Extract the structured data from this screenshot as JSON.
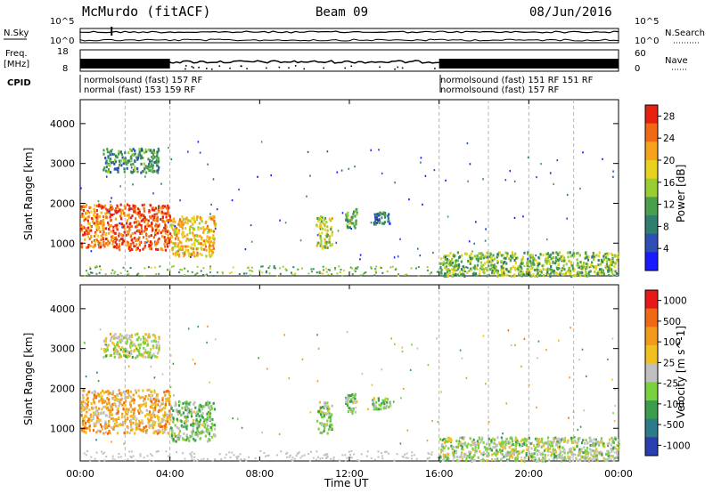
{
  "header": {
    "station": "McMurdo (fitACF)",
    "beam": "Beam 09",
    "date": "08/Jun/2016"
  },
  "panels": {
    "nsky": {
      "left_label": "N.Sky",
      "right_label": "N.Search",
      "left_ticks": [
        "10^5",
        "10^0"
      ],
      "right_ticks": [
        "10^5",
        "10^0"
      ]
    },
    "freq": {
      "left_label_1": "Freq.",
      "left_label_2": "[MHz]",
      "left_ticks": [
        "18",
        "8"
      ],
      "right_label": "Nave",
      "right_ticks": [
        "60",
        "0"
      ]
    },
    "cpid": {
      "label": "CPID",
      "row1": "normolsound (fast) 157 RF",
      "row2": "normal (fast) 153 159 RF",
      "row1b": "normolsound (fast)  151 RF   151 RF",
      "row2b": "normolsound (fast)  157 RF"
    }
  },
  "axes": {
    "ylabel": "Slant Range [km]",
    "xlabel": "Time UT",
    "yticks": [
      "1000",
      "2000",
      "3000",
      "4000"
    ],
    "xticks": [
      "00:00",
      "04:00",
      "08:00",
      "12:00",
      "16:00",
      "20:00",
      "00:00"
    ]
  },
  "colorbars": {
    "power": {
      "label": "Power [dB]",
      "ticks": [
        "4",
        "8",
        "12",
        "16",
        "20",
        "24",
        "28"
      ],
      "colors": [
        "#1a1aff",
        "#2e4fb5",
        "#2f7f6f",
        "#4aa04a",
        "#9acd32",
        "#e8d21b",
        "#f7a21b",
        "#f06a13",
        "#e82010"
      ]
    },
    "velocity": {
      "label": "Velocity [m s^-1]",
      "ticks": [
        "1000",
        "500",
        "100",
        "25",
        "-25",
        "-100",
        "-500",
        "-1000"
      ],
      "colors": [
        "#2a3faf",
        "#2c7a8a",
        "#3c9e4c",
        "#7ad13e",
        "#c0c0c0",
        "#f0c020",
        "#f39a1a",
        "#f06a13",
        "#e81818"
      ]
    }
  },
  "chart_data": [
    {
      "type": "heatmap",
      "title": "Power",
      "xlabel": "Time UT",
      "ylabel": "Slant Range [km]",
      "xlim": [
        0,
        24
      ],
      "ylim": [
        180,
        4600
      ],
      "colorbar_label": "Power [dB]",
      "colorbar_range": [
        0,
        30
      ],
      "echo_regions": [
        {
          "t_start": 0.0,
          "t_end": 1.5,
          "r_min": 900,
          "r_max": 2000,
          "value": 24
        },
        {
          "t_start": 1.5,
          "t_end": 4.0,
          "r_min": 850,
          "r_max": 2000,
          "value": 26
        },
        {
          "t_start": 1.0,
          "t_end": 3.5,
          "r_min": 2800,
          "r_max": 3400,
          "value": 10
        },
        {
          "t_start": 4.0,
          "t_end": 6.0,
          "r_min": 700,
          "r_max": 1700,
          "value": 20
        },
        {
          "t_start": 10.5,
          "t_end": 11.2,
          "r_min": 900,
          "r_max": 1700,
          "value": 16
        },
        {
          "t_start": 11.8,
          "t_end": 12.3,
          "r_min": 1400,
          "r_max": 1900,
          "value": 12
        },
        {
          "t_start": 13.0,
          "t_end": 13.8,
          "r_min": 1500,
          "r_max": 1800,
          "value": 8
        },
        {
          "t_start": 16.0,
          "t_end": 24.0,
          "r_min": 200,
          "r_max": 800,
          "value": 14
        }
      ]
    },
    {
      "type": "heatmap",
      "title": "Velocity",
      "xlabel": "Time UT",
      "ylabel": "Slant Range [km]",
      "xlim": [
        0,
        24
      ],
      "ylim": [
        180,
        4600
      ],
      "colorbar_label": "Velocity [m s^-1]",
      "colorbar_range": [
        -1000,
        1000
      ],
      "echo_regions": [
        {
          "t_start": 0.0,
          "t_end": 4.0,
          "r_min": 900,
          "r_max": 2000,
          "value": 300
        },
        {
          "t_start": 1.0,
          "t_end": 3.5,
          "r_min": 2800,
          "r_max": 3400,
          "value": 0
        },
        {
          "t_start": 4.0,
          "t_end": 6.0,
          "r_min": 700,
          "r_max": 1700,
          "value": -200
        },
        {
          "t_start": 10.5,
          "t_end": 11.2,
          "r_min": 900,
          "r_max": 1700,
          "value": -150
        },
        {
          "t_start": 11.8,
          "t_end": 12.3,
          "r_min": 1400,
          "r_max": 1900,
          "value": -150
        },
        {
          "t_start": 13.0,
          "t_end": 13.8,
          "r_min": 1500,
          "r_max": 1800,
          "value": -150
        },
        {
          "t_start": 16.0,
          "t_end": 24.0,
          "r_min": 200,
          "r_max": 800,
          "value": -100
        }
      ]
    }
  ]
}
